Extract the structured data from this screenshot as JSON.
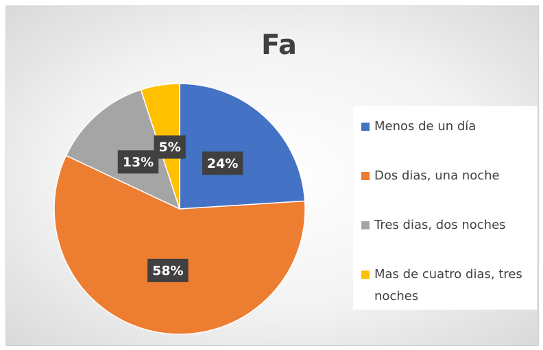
{
  "chart_data": {
    "type": "pie",
    "title": "Fa",
    "categories": [
      "Menos de un día",
      "Dos dias, una noche",
      "Tres dias, dos noches",
      "Mas de cuatro dias, tres noches"
    ],
    "values": [
      24,
      58,
      13,
      5
    ],
    "value_labels": [
      "24%",
      "58%",
      "13%",
      "5%"
    ],
    "colors": [
      "#4472c4",
      "#ed7d31",
      "#a5a5a5",
      "#ffc000"
    ],
    "legend": "right"
  }
}
